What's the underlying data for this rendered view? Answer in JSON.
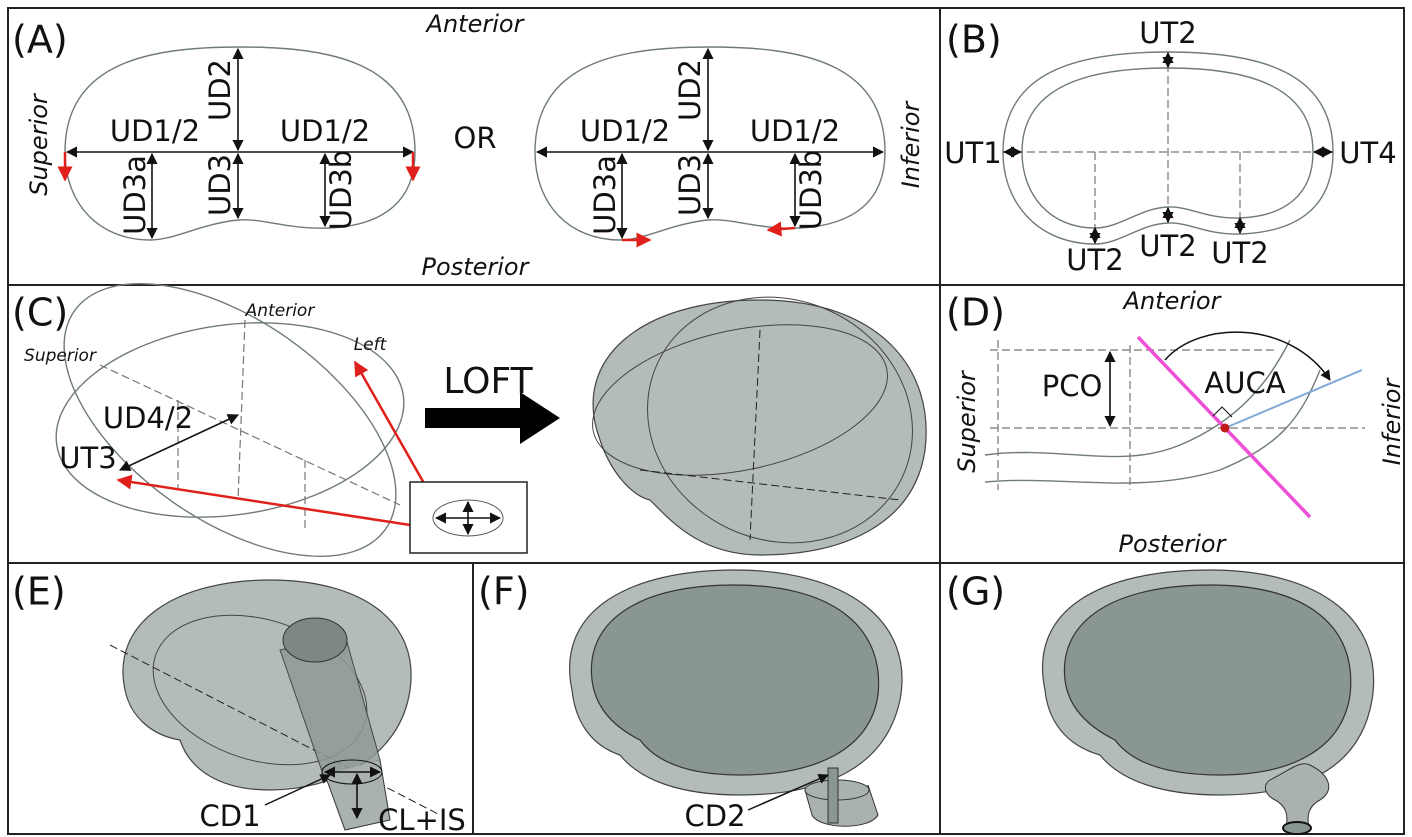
{
  "panel_a": {
    "label": "(A)",
    "anterior": "Anterior",
    "posterior": "Posterior",
    "superior": "Superior",
    "inferior": "Inferior",
    "or": "OR",
    "left_shape": [
      "UD1/2",
      "UD1/2",
      "UD2",
      "UD3",
      "UD3a",
      "UD3b"
    ],
    "right_shape": [
      "UD1/2",
      "UD1/2",
      "UD2",
      "UD3",
      "UD3a",
      "UD3b"
    ]
  },
  "panel_b": {
    "label": "(B)",
    "labels": [
      "UT2",
      "UT1",
      "UT4",
      "UT2",
      "UT2",
      "UT2"
    ]
  },
  "panel_c": {
    "label": "(C)",
    "anterior": "Anterior",
    "superior": "Superior",
    "left": "Left",
    "ud4": "UD4/2",
    "ut3": "UT3",
    "loft": "LOFT"
  },
  "panel_d": {
    "label": "(D)",
    "anterior": "Anterior",
    "posterior": "Posterior",
    "superior": "Superior",
    "inferior": "Inferior",
    "pco": "PCO",
    "auca": "AUCA"
  },
  "panel_e": {
    "label": "(E)",
    "cd1": "CD1",
    "clis": "CL+IS"
  },
  "panel_f": {
    "label": "(F)",
    "cd2": "CD2"
  },
  "panel_g": {
    "label": "(G)"
  }
}
